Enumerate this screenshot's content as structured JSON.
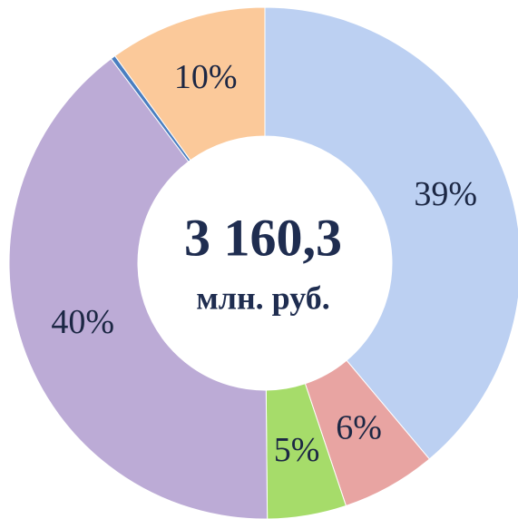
{
  "chart_data": {
    "type": "donut",
    "values": [
      39,
      6,
      5,
      40,
      0.3,
      10
    ],
    "value_labels": [
      "39%",
      "6%",
      "5%",
      "40%",
      null,
      "10%"
    ],
    "colors": [
      "#bcd0f2",
      "#e8a4a2",
      "#a6dc6a",
      "#bcabd6",
      "#4a7ec0",
      "#fbc99a"
    ],
    "center_text": "3 160,3",
    "center_subtext": "млн. руб."
  }
}
